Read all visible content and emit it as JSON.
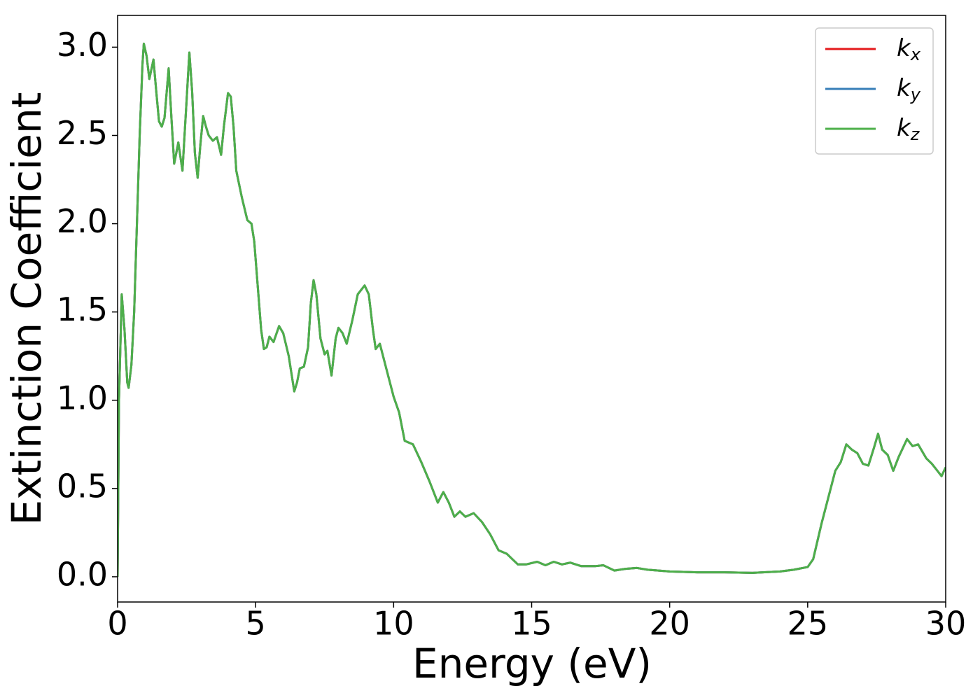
{
  "chart_data": {
    "type": "line",
    "xlabel": "Energy (eV)",
    "ylabel": "Extinction Coefficient",
    "x": [
      0,
      0.05,
      0.15,
      0.25,
      0.35,
      0.4,
      0.5,
      0.6,
      0.7,
      0.8,
      0.9,
      0.95,
      1.05,
      1.15,
      1.3,
      1.4,
      1.5,
      1.6,
      1.7,
      1.85,
      1.95,
      2.05,
      2.2,
      2.35,
      2.5,
      2.6,
      2.7,
      2.8,
      2.9,
      3.0,
      3.1,
      3.2,
      3.3,
      3.45,
      3.6,
      3.75,
      3.85,
      4.0,
      4.1,
      4.2,
      4.3,
      4.5,
      4.7,
      4.85,
      4.95,
      5.1,
      5.2,
      5.3,
      5.4,
      5.5,
      5.65,
      5.85,
      6.0,
      6.2,
      6.4,
      6.5,
      6.6,
      6.75,
      6.9,
      7.0,
      7.1,
      7.2,
      7.35,
      7.5,
      7.6,
      7.75,
      7.9,
      8.0,
      8.15,
      8.3,
      8.5,
      8.7,
      8.95,
      9.1,
      9.25,
      9.35,
      9.5,
      9.7,
      10.0,
      10.2,
      10.4,
      10.7,
      11.0,
      11.3,
      11.6,
      11.8,
      12.0,
      12.2,
      12.4,
      12.6,
      12.9,
      13.2,
      13.5,
      13.8,
      14.1,
      14.5,
      14.8,
      15.2,
      15.5,
      15.8,
      16.1,
      16.4,
      16.8,
      17.3,
      17.6,
      18.0,
      18.4,
      18.8,
      19.2,
      20,
      21,
      22,
      23,
      24,
      24.5,
      25.0,
      25.2,
      25.5,
      26.0,
      26.2,
      26.4,
      26.6,
      26.8,
      27.0,
      27.2,
      27.4,
      27.55,
      27.7,
      27.9,
      28.1,
      28.3,
      28.6,
      28.8,
      29.0,
      29.3,
      29.5,
      29.7,
      29.85,
      30.0
    ],
    "series": [
      {
        "name": "kx",
        "color": "#e41a1c",
        "values": [
          0,
          1.0,
          1.6,
          1.4,
          1.1,
          1.07,
          1.2,
          1.5,
          2.0,
          2.5,
          2.9,
          3.02,
          2.95,
          2.82,
          2.93,
          2.75,
          2.58,
          2.55,
          2.6,
          2.88,
          2.6,
          2.34,
          2.46,
          2.3,
          2.7,
          2.97,
          2.75,
          2.4,
          2.26,
          2.45,
          2.61,
          2.55,
          2.5,
          2.47,
          2.49,
          2.39,
          2.55,
          2.74,
          2.72,
          2.55,
          2.3,
          2.15,
          2.02,
          2.0,
          1.9,
          1.6,
          1.4,
          1.29,
          1.3,
          1.36,
          1.33,
          1.42,
          1.38,
          1.25,
          1.05,
          1.1,
          1.18,
          1.19,
          1.3,
          1.55,
          1.68,
          1.6,
          1.35,
          1.26,
          1.28,
          1.14,
          1.35,
          1.41,
          1.38,
          1.32,
          1.45,
          1.6,
          1.65,
          1.6,
          1.4,
          1.29,
          1.32,
          1.2,
          1.02,
          0.93,
          0.77,
          0.75,
          0.65,
          0.54,
          0.42,
          0.48,
          0.42,
          0.34,
          0.37,
          0.34,
          0.36,
          0.31,
          0.24,
          0.15,
          0.13,
          0.07,
          0.07,
          0.085,
          0.065,
          0.085,
          0.07,
          0.08,
          0.06,
          0.06,
          0.065,
          0.035,
          0.045,
          0.05,
          0.04,
          0.03,
          0.025,
          0.025,
          0.022,
          0.03,
          0.04,
          0.055,
          0.1,
          0.3,
          0.6,
          0.65,
          0.75,
          0.72,
          0.7,
          0.64,
          0.63,
          0.73,
          0.81,
          0.72,
          0.69,
          0.6,
          0.68,
          0.78,
          0.74,
          0.75,
          0.67,
          0.64,
          0.6,
          0.57,
          0.62
        ]
      },
      {
        "name": "ky",
        "color": "#377eb8",
        "values": [
          0,
          1.0,
          1.6,
          1.4,
          1.1,
          1.07,
          1.2,
          1.5,
          2.0,
          2.5,
          2.9,
          3.02,
          2.95,
          2.82,
          2.93,
          2.75,
          2.58,
          2.55,
          2.6,
          2.88,
          2.6,
          2.34,
          2.46,
          2.3,
          2.7,
          2.97,
          2.75,
          2.4,
          2.26,
          2.45,
          2.61,
          2.55,
          2.5,
          2.47,
          2.49,
          2.39,
          2.55,
          2.74,
          2.72,
          2.55,
          2.3,
          2.15,
          2.02,
          2.0,
          1.9,
          1.6,
          1.4,
          1.29,
          1.3,
          1.36,
          1.33,
          1.42,
          1.38,
          1.25,
          1.05,
          1.1,
          1.18,
          1.19,
          1.3,
          1.55,
          1.68,
          1.6,
          1.35,
          1.26,
          1.28,
          1.14,
          1.35,
          1.41,
          1.38,
          1.32,
          1.45,
          1.6,
          1.65,
          1.6,
          1.4,
          1.29,
          1.32,
          1.2,
          1.02,
          0.93,
          0.77,
          0.75,
          0.65,
          0.54,
          0.42,
          0.48,
          0.42,
          0.34,
          0.37,
          0.34,
          0.36,
          0.31,
          0.24,
          0.15,
          0.13,
          0.07,
          0.07,
          0.085,
          0.065,
          0.085,
          0.07,
          0.08,
          0.06,
          0.06,
          0.065,
          0.035,
          0.045,
          0.05,
          0.04,
          0.03,
          0.025,
          0.025,
          0.022,
          0.03,
          0.04,
          0.055,
          0.1,
          0.3,
          0.6,
          0.65,
          0.75,
          0.72,
          0.7,
          0.64,
          0.63,
          0.73,
          0.81,
          0.72,
          0.69,
          0.6,
          0.68,
          0.78,
          0.74,
          0.75,
          0.67,
          0.64,
          0.6,
          0.57,
          0.62
        ]
      },
      {
        "name": "kz",
        "color": "#4daf4a",
        "values": [
          0,
          1.0,
          1.6,
          1.4,
          1.1,
          1.07,
          1.2,
          1.5,
          2.0,
          2.5,
          2.9,
          3.02,
          2.95,
          2.82,
          2.93,
          2.75,
          2.58,
          2.55,
          2.6,
          2.88,
          2.6,
          2.34,
          2.46,
          2.3,
          2.7,
          2.97,
          2.75,
          2.4,
          2.26,
          2.45,
          2.61,
          2.55,
          2.5,
          2.47,
          2.49,
          2.39,
          2.55,
          2.74,
          2.72,
          2.55,
          2.3,
          2.15,
          2.02,
          2.0,
          1.9,
          1.6,
          1.4,
          1.29,
          1.3,
          1.36,
          1.33,
          1.42,
          1.38,
          1.25,
          1.05,
          1.1,
          1.18,
          1.19,
          1.3,
          1.55,
          1.68,
          1.6,
          1.35,
          1.26,
          1.28,
          1.14,
          1.35,
          1.41,
          1.38,
          1.32,
          1.45,
          1.6,
          1.65,
          1.6,
          1.4,
          1.29,
          1.32,
          1.2,
          1.02,
          0.93,
          0.77,
          0.75,
          0.65,
          0.54,
          0.42,
          0.48,
          0.42,
          0.34,
          0.37,
          0.34,
          0.36,
          0.31,
          0.24,
          0.15,
          0.13,
          0.07,
          0.07,
          0.085,
          0.065,
          0.085,
          0.07,
          0.08,
          0.06,
          0.06,
          0.065,
          0.035,
          0.045,
          0.05,
          0.04,
          0.03,
          0.025,
          0.025,
          0.022,
          0.03,
          0.04,
          0.055,
          0.1,
          0.3,
          0.6,
          0.65,
          0.75,
          0.72,
          0.7,
          0.64,
          0.63,
          0.73,
          0.81,
          0.72,
          0.69,
          0.6,
          0.68,
          0.78,
          0.74,
          0.75,
          0.67,
          0.64,
          0.6,
          0.57,
          0.62
        ]
      }
    ],
    "xlim": [
      0,
      30
    ],
    "xticks": [
      0,
      5,
      10,
      15,
      20,
      25,
      30
    ],
    "ylim": [
      -0.143,
      3.18
    ],
    "yticks": [
      {
        "value": 0,
        "label": "0.0"
      },
      0.5,
      {
        "value": 1,
        "label": "1.0"
      },
      1.5,
      {
        "value": 2,
        "label": "2.0"
      },
      2.5,
      {
        "value": 3,
        "label": "3.0"
      }
    ],
    "legend": "upper right",
    "grid": false
  }
}
